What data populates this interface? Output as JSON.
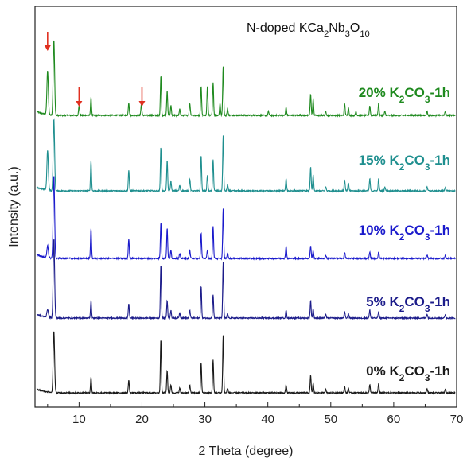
{
  "chart_data": {
    "type": "line",
    "title": "N-doped KCa",
    "title_parts": [
      {
        "t": "N-doped KCa",
        "sub": false
      },
      {
        "t": "2",
        "sub": true
      },
      {
        "t": "Nb",
        "sub": false
      },
      {
        "t": "3",
        "sub": true
      },
      {
        "t": "O",
        "sub": false
      },
      {
        "t": "10",
        "sub": true
      }
    ],
    "xlabel": "2 Theta (degree)",
    "ylabel": "Intensity (a.u.)",
    "xlim": [
      3,
      70
    ],
    "xticks": [
      "10",
      "20",
      "30",
      "40",
      "50",
      "60",
      "70"
    ],
    "yticks": "none",
    "legend": "inline labels on right",
    "arrow_color": "#e03020",
    "arrow_markers_x": [
      5.0,
      10.0,
      20.0
    ],
    "series": [
      {
        "name": "20% K",
        "name_parts": [
          {
            "t": "20% K",
            "sub": false
          },
          {
            "t": "2",
            "sub": true
          },
          {
            "t": "CO",
            "sub": false
          },
          {
            "t": "3",
            "sub": true
          },
          {
            "t": "-1h",
            "sub": false
          }
        ],
        "color": "#1f8a1f",
        "offset": 4,
        "peaks": [
          [
            5.0,
            0.55
          ],
          [
            6.0,
            0.95
          ],
          [
            10.0,
            0.12
          ],
          [
            11.9,
            0.22
          ],
          [
            17.9,
            0.16
          ],
          [
            19.9,
            0.14
          ],
          [
            23.0,
            0.5
          ],
          [
            24.0,
            0.3
          ],
          [
            24.6,
            0.12
          ],
          [
            26.0,
            0.08
          ],
          [
            27.6,
            0.15
          ],
          [
            29.4,
            0.37
          ],
          [
            30.4,
            0.37
          ],
          [
            31.3,
            0.42
          ],
          [
            32.4,
            0.15
          ],
          [
            32.9,
            0.62
          ],
          [
            33.6,
            0.08
          ],
          [
            40.1,
            0.05
          ],
          [
            42.9,
            0.1
          ],
          [
            46.8,
            0.27
          ],
          [
            47.2,
            0.2
          ],
          [
            49.2,
            0.05
          ],
          [
            52.2,
            0.15
          ],
          [
            52.8,
            0.1
          ],
          [
            54.0,
            0.05
          ],
          [
            56.2,
            0.12
          ],
          [
            57.6,
            0.15
          ],
          [
            58.6,
            0.05
          ],
          [
            65.3,
            0.05
          ],
          [
            68.2,
            0.05
          ]
        ]
      },
      {
        "name": "15% K",
        "name_parts": [
          {
            "t": "15% K",
            "sub": false
          },
          {
            "t": "2",
            "sub": true
          },
          {
            "t": "CO",
            "sub": false
          },
          {
            "t": "3",
            "sub": true
          },
          {
            "t": "-1h",
            "sub": false
          }
        ],
        "color": "#1f8f8f",
        "offset": 3,
        "peaks": [
          [
            5.0,
            0.5
          ],
          [
            6.0,
            0.9
          ],
          [
            11.9,
            0.38
          ],
          [
            17.9,
            0.26
          ],
          [
            23.0,
            0.55
          ],
          [
            24.0,
            0.38
          ],
          [
            24.6,
            0.12
          ],
          [
            26.0,
            0.07
          ],
          [
            27.6,
            0.15
          ],
          [
            29.4,
            0.45
          ],
          [
            30.4,
            0.2
          ],
          [
            31.3,
            0.4
          ],
          [
            32.9,
            0.7
          ],
          [
            33.6,
            0.08
          ],
          [
            42.9,
            0.15
          ],
          [
            46.8,
            0.3
          ],
          [
            47.2,
            0.2
          ],
          [
            49.2,
            0.05
          ],
          [
            52.2,
            0.14
          ],
          [
            52.8,
            0.1
          ],
          [
            56.2,
            0.15
          ],
          [
            57.6,
            0.15
          ],
          [
            58.6,
            0.05
          ],
          [
            65.3,
            0.05
          ],
          [
            68.2,
            0.05
          ]
        ]
      },
      {
        "name": "10% K",
        "name_parts": [
          {
            "t": "10% K",
            "sub": false
          },
          {
            "t": "2",
            "sub": true
          },
          {
            "t": "CO",
            "sub": false
          },
          {
            "t": "3",
            "sub": true
          },
          {
            "t": "-1h",
            "sub": false
          }
        ],
        "color": "#1a1acc",
        "offset": 2,
        "peaks": [
          [
            5.0,
            0.15
          ],
          [
            6.0,
            1.05
          ],
          [
            11.9,
            0.38
          ],
          [
            17.9,
            0.25
          ],
          [
            23.0,
            0.45
          ],
          [
            24.0,
            0.38
          ],
          [
            24.6,
            0.1
          ],
          [
            26.0,
            0.06
          ],
          [
            27.6,
            0.1
          ],
          [
            29.4,
            0.32
          ],
          [
            30.4,
            0.1
          ],
          [
            31.3,
            0.41
          ],
          [
            32.9,
            0.62
          ],
          [
            33.6,
            0.07
          ],
          [
            42.9,
            0.16
          ],
          [
            46.8,
            0.16
          ],
          [
            47.2,
            0.1
          ],
          [
            49.2,
            0.04
          ],
          [
            52.2,
            0.08
          ],
          [
            56.2,
            0.08
          ],
          [
            57.6,
            0.08
          ],
          [
            65.3,
            0.04
          ],
          [
            68.2,
            0.04
          ]
        ]
      },
      {
        "name": "5% K",
        "name_parts": [
          {
            "t": "5% K",
            "sub": false
          },
          {
            "t": "2",
            "sub": true
          },
          {
            "t": "CO",
            "sub": false
          },
          {
            "t": "3",
            "sub": true
          },
          {
            "t": "-1h",
            "sub": false
          }
        ],
        "color": "#1c1c8a",
        "offset": 1,
        "peaks": [
          [
            5.0,
            0.1
          ],
          [
            6.0,
            1.0
          ],
          [
            11.9,
            0.22
          ],
          [
            17.9,
            0.18
          ],
          [
            23.0,
            0.68
          ],
          [
            24.0,
            0.22
          ],
          [
            24.6,
            0.1
          ],
          [
            26.0,
            0.07
          ],
          [
            27.6,
            0.1
          ],
          [
            29.4,
            0.4
          ],
          [
            31.3,
            0.3
          ],
          [
            32.9,
            0.7
          ],
          [
            33.6,
            0.06
          ],
          [
            42.9,
            0.1
          ],
          [
            46.8,
            0.22
          ],
          [
            47.2,
            0.12
          ],
          [
            49.2,
            0.05
          ],
          [
            52.2,
            0.08
          ],
          [
            52.8,
            0.06
          ],
          [
            56.2,
            0.1
          ],
          [
            57.6,
            0.08
          ],
          [
            65.3,
            0.05
          ],
          [
            68.2,
            0.04
          ]
        ]
      },
      {
        "name": "0% K",
        "name_parts": [
          {
            "t": "0% K",
            "sub": false
          },
          {
            "t": "2",
            "sub": true
          },
          {
            "t": "CO",
            "sub": false
          },
          {
            "t": "3",
            "sub": true
          },
          {
            "t": "-1h",
            "sub": false
          }
        ],
        "color": "#1a1a1a",
        "offset": 0,
        "peaks": [
          [
            6.0,
            0.78
          ],
          [
            11.9,
            0.2
          ],
          [
            17.9,
            0.16
          ],
          [
            23.0,
            0.68
          ],
          [
            24.0,
            0.28
          ],
          [
            24.6,
            0.1
          ],
          [
            26.0,
            0.06
          ],
          [
            27.6,
            0.1
          ],
          [
            29.4,
            0.38
          ],
          [
            31.3,
            0.42
          ],
          [
            32.9,
            0.72
          ],
          [
            33.6,
            0.06
          ],
          [
            42.9,
            0.1
          ],
          [
            46.8,
            0.22
          ],
          [
            47.2,
            0.12
          ],
          [
            49.2,
            0.05
          ],
          [
            52.2,
            0.08
          ],
          [
            52.8,
            0.06
          ],
          [
            56.2,
            0.1
          ],
          [
            57.6,
            0.12
          ],
          [
            65.3,
            0.05
          ],
          [
            68.2,
            0.04
          ]
        ]
      }
    ]
  }
}
